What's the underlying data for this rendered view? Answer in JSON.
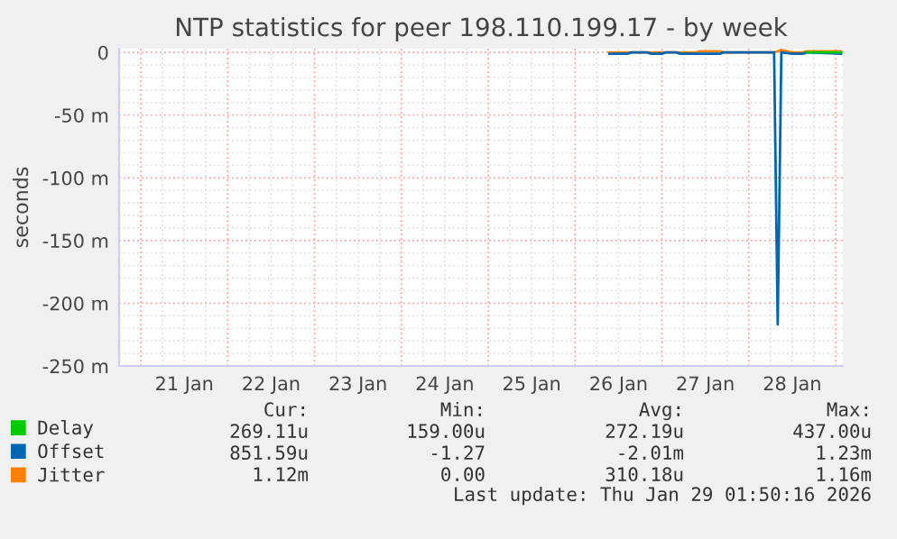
{
  "chart_data": {
    "type": "line",
    "title": "NTP statistics for peer 198.110.199.17 - by week",
    "ylabel": "seconds",
    "x": [
      "2026-01-26T09:30",
      "2026-01-26T14:30",
      "2026-01-26T15:30",
      "2026-01-26T20:00",
      "2026-01-26T21:00",
      "2026-01-27T00:00",
      "2026-01-27T01:00",
      "2026-01-27T04:00",
      "2026-01-27T05:00",
      "2026-01-27T09:30",
      "2026-01-27T10:30",
      "2026-01-27T16:00",
      "2026-01-27T17:00",
      "2026-01-28T07:00",
      "2026-01-28T08:00",
      "2026-01-28T09:00",
      "2026-01-28T12:00",
      "2026-01-28T15:00",
      "2026-01-28T16:00",
      "2026-01-29T01:30"
    ],
    "series": [
      {
        "name": "Delay",
        "color": "#00cc00",
        "values": [
          null,
          null,
          null,
          null,
          null,
          null,
          null,
          null,
          null,
          null,
          null,
          null,
          null,
          null,
          null,
          null,
          null,
          null,
          0,
          0
        ]
      },
      {
        "name": "Offset",
        "color": "#0066b3",
        "values": [
          -1,
          -1,
          0,
          0,
          -1,
          -1,
          0,
          0,
          -1,
          -1,
          -1,
          -1,
          0,
          0,
          -217,
          0,
          -1,
          -1,
          0,
          -1
        ]
      },
      {
        "name": "Jitter",
        "color": "#ff8000",
        "values": [
          0,
          0,
          0,
          0,
          0,
          0,
          0,
          0,
          0,
          0,
          1,
          1,
          0,
          0,
          1,
          2,
          0,
          0,
          1,
          1
        ]
      }
    ],
    "xlim": [
      "2026-01-20T18:00",
      "2026-01-29T02:00"
    ],
    "xticks": [
      {
        "value": "2026-01-21T12:00",
        "label": "21 Jan"
      },
      {
        "value": "2026-01-22T12:00",
        "label": "22 Jan"
      },
      {
        "value": "2026-01-23T12:00",
        "label": "23 Jan"
      },
      {
        "value": "2026-01-24T12:00",
        "label": "24 Jan"
      },
      {
        "value": "2026-01-25T12:00",
        "label": "25 Jan"
      },
      {
        "value": "2026-01-26T12:00",
        "label": "26 Jan"
      },
      {
        "value": "2026-01-27T12:00",
        "label": "27 Jan"
      },
      {
        "value": "2026-01-28T12:00",
        "label": "28 Jan"
      }
    ],
    "ylim": [
      -250,
      3
    ],
    "yticks": [
      {
        "value": -250,
        "label": "-250 m"
      },
      {
        "value": -200,
        "label": "-200 m"
      },
      {
        "value": -150,
        "label": "-150 m"
      },
      {
        "value": -100,
        "label": "-100 m"
      },
      {
        "value": -50,
        "label": "-50 m"
      },
      0
    ],
    "grid": true,
    "legend": "bottom left",
    "marker": "none",
    "line_style": "solid",
    "annotations": [
      "Cur:",
      "Min:",
      "Avg:",
      "Max:",
      "269.11u",
      "159.00u",
      "272.19u",
      "437.00u",
      "851.59u",
      "-1.27",
      "-2.01m",
      "1.23m",
      "1.12m",
      "0.00",
      "310.18u",
      "1.16m",
      "Last update: Thu Jan 29 01:50:16 2026"
    ]
  }
}
